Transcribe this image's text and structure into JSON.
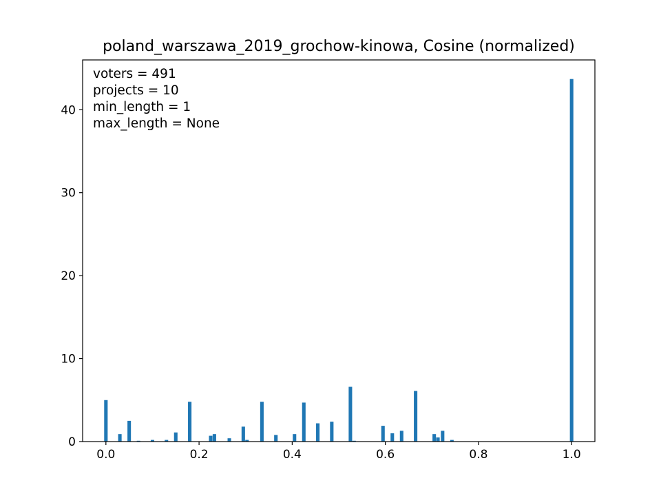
{
  "chart_data": {
    "type": "bar",
    "title": "poland_warszawa_2019_grochow-kinowa, Cosine (normalized)",
    "xlabel": "",
    "ylabel": "",
    "xlim": [
      -0.05,
      1.05
    ],
    "ylim": [
      0,
      46
    ],
    "bin_width": 0.01,
    "color": "#1f77b4",
    "grid": false,
    "xticks": [
      {
        "value": 0.0,
        "label": "0.0"
      },
      {
        "value": 0.2,
        "label": "0.2"
      },
      {
        "value": 0.4,
        "label": "0.4"
      },
      {
        "value": 0.6,
        "label": "0.6"
      },
      {
        "value": 0.8,
        "label": "0.8"
      },
      {
        "value": 1.0,
        "label": "1.0"
      }
    ],
    "yticks": [
      {
        "value": 0,
        "label": "0"
      },
      {
        "value": 10,
        "label": "10"
      },
      {
        "value": 20,
        "label": "20"
      },
      {
        "value": 30,
        "label": "30"
      },
      {
        "value": 40,
        "label": "40"
      }
    ],
    "annotations": [
      "voters = 491",
      "projects = 10",
      "min_length = 1",
      "max_length = None"
    ],
    "bins": [
      {
        "x": 0.0,
        "y": 5.0
      },
      {
        "x": 0.03,
        "y": 0.9
      },
      {
        "x": 0.05,
        "y": 2.5
      },
      {
        "x": 0.07,
        "y": 0.1
      },
      {
        "x": 0.1,
        "y": 0.2
      },
      {
        "x": 0.13,
        "y": 0.2
      },
      {
        "x": 0.15,
        "y": 1.1
      },
      {
        "x": 0.18,
        "y": 4.8
      },
      {
        "x": 0.225,
        "y": 0.7
      },
      {
        "x": 0.233,
        "y": 0.9
      },
      {
        "x": 0.265,
        "y": 0.4
      },
      {
        "x": 0.295,
        "y": 1.8
      },
      {
        "x": 0.303,
        "y": 0.2
      },
      {
        "x": 0.335,
        "y": 4.8
      },
      {
        "x": 0.365,
        "y": 0.8
      },
      {
        "x": 0.405,
        "y": 0.9
      },
      {
        "x": 0.425,
        "y": 4.7
      },
      {
        "x": 0.455,
        "y": 2.2
      },
      {
        "x": 0.485,
        "y": 2.4
      },
      {
        "x": 0.525,
        "y": 6.6
      },
      {
        "x": 0.533,
        "y": 0.1
      },
      {
        "x": 0.595,
        "y": 1.9
      },
      {
        "x": 0.615,
        "y": 1.0
      },
      {
        "x": 0.635,
        "y": 1.3
      },
      {
        "x": 0.665,
        "y": 6.1
      },
      {
        "x": 0.705,
        "y": 0.9
      },
      {
        "x": 0.713,
        "y": 0.5
      },
      {
        "x": 0.723,
        "y": 1.3
      },
      {
        "x": 0.743,
        "y": 0.2
      },
      {
        "x": 1.0,
        "y": 43.7
      }
    ]
  }
}
